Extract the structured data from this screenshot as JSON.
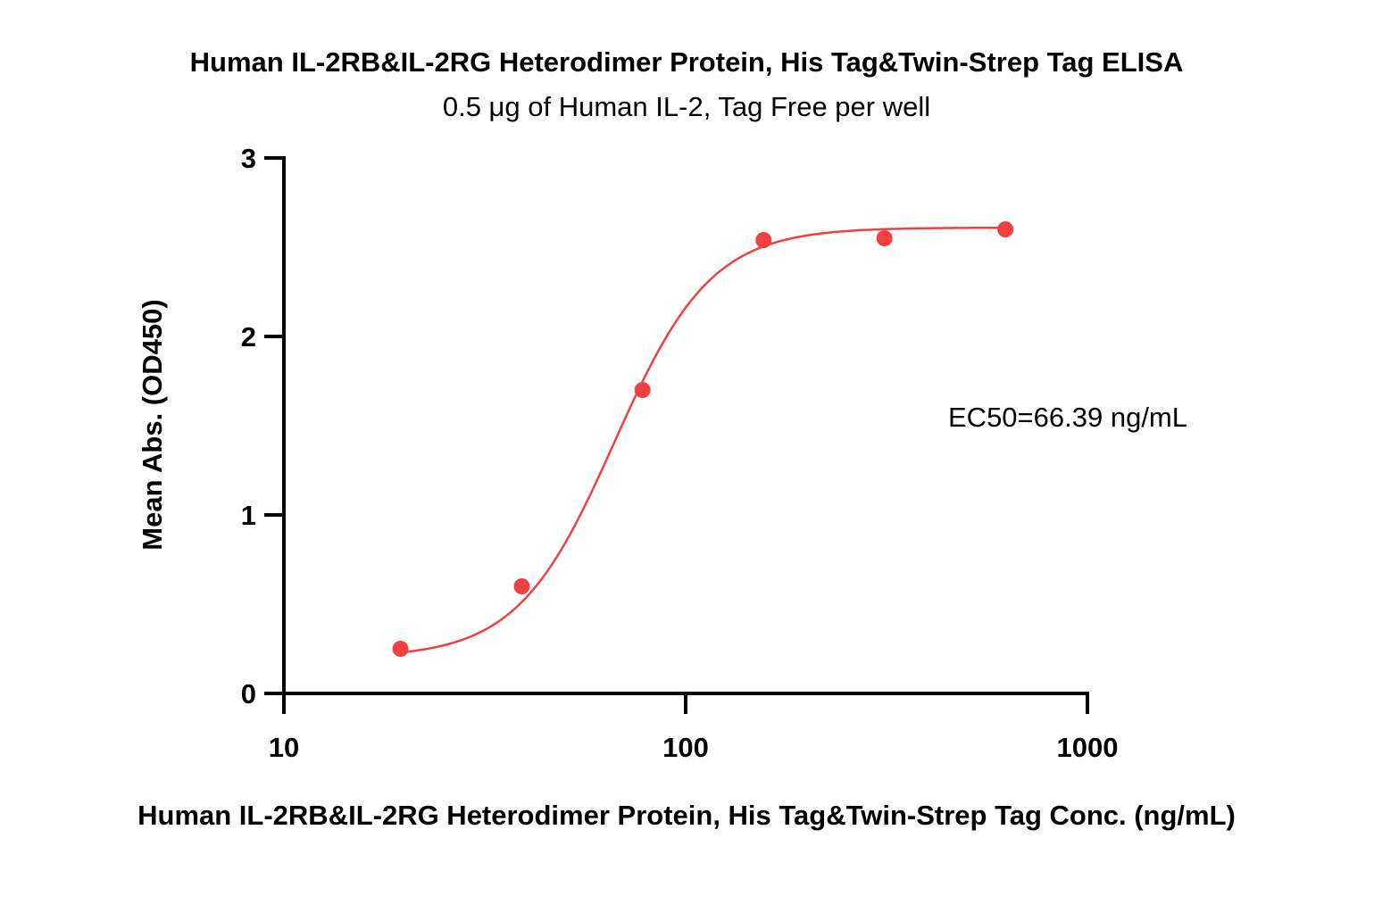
{
  "chart_data": {
    "type": "scatter",
    "title": "Human IL-2RB&IL-2RG Heterodimer Protein, His Tag&Twin-Strep Tag ELISA",
    "subtitle": "0.5 μg of Human IL-2, Tag Free per well",
    "xlabel": "Human IL-2RB&IL-2RG Heterodimer Protein, His Tag&Twin-Strep Tag Conc. (ng/mL)",
    "ylabel": "Mean Abs. (OD450)",
    "x_scale": "log",
    "xlim": [
      10,
      1000
    ],
    "ylim": [
      0,
      3
    ],
    "x_ticks": [
      10,
      100,
      1000
    ],
    "x_tick_labels": [
      "10",
      "100",
      "1000"
    ],
    "y_ticks": [
      0,
      1,
      2,
      3
    ],
    "y_tick_labels": [
      "0",
      "1",
      "2",
      "3"
    ],
    "grid": false,
    "color": "#f04040",
    "series": [
      {
        "x": [
          19.5,
          39.1,
          78.1,
          156.3,
          312.5,
          625
        ],
        "y": [
          0.25,
          0.6,
          1.7,
          2.54,
          2.55,
          2.6
        ]
      }
    ],
    "fit": {
      "model": "4PL",
      "bottom": 0.2,
      "top": 2.61,
      "ec50": 66.39,
      "hill": 3.6
    },
    "annotation": "EC50=66.39 ng/mL"
  }
}
